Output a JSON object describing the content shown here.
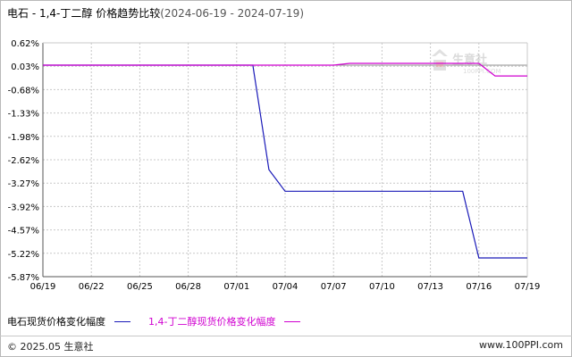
{
  "title": {
    "main": "电石 - 1,4-丁二醇 价格趋势比较",
    "range": "(2024-06-19 - 2024-07-19)"
  },
  "watermark": {
    "brand": "生意社",
    "site": "100PPI.COM"
  },
  "legend": [
    {
      "label": "电石现货价格变化幅度",
      "color": "#1a1ab8"
    },
    {
      "label": "1,4-丁二醇现货价格变化幅度",
      "color": "#d000d0"
    }
  ],
  "footer": {
    "copyright": "© 2025.05 生意社",
    "url": "www.100PPI.com"
  },
  "chart_data": {
    "type": "line",
    "title": "电石 - 1,4-丁二醇 价格趋势比较",
    "x_tick_labels": [
      "06/19",
      "06/22",
      "06/25",
      "06/28",
      "07/01",
      "07/04",
      "07/07",
      "07/10",
      "07/13",
      "07/16",
      "07/19"
    ],
    "y_tick_labels": [
      "0.62%",
      "0.03%",
      "-0.68%",
      "-1.33%",
      "-1.98%",
      "-2.62%",
      "-3.27%",
      "-3.92%",
      "-4.57%",
      "-5.22%",
      "-5.87%"
    ],
    "ylim": [
      -5.87,
      0.62
    ],
    "grid": true,
    "legend_position": "bottom",
    "series": [
      {
        "name": "电石现货价格变化幅度",
        "color": "#1a1ab8",
        "points": [
          [
            "06/19",
            0.0
          ],
          [
            "07/02",
            0.0
          ],
          [
            "07/03",
            -2.9
          ],
          [
            "07/04",
            -3.5
          ],
          [
            "07/15",
            -3.5
          ],
          [
            "07/16",
            -5.35
          ],
          [
            "07/19",
            -5.35
          ]
        ]
      },
      {
        "name": "1,4-丁二醇现货价格变化幅度",
        "color": "#d000d0",
        "points": [
          [
            "06/19",
            0.0
          ],
          [
            "07/07",
            0.0
          ],
          [
            "07/08",
            0.05
          ],
          [
            "07/16",
            0.05
          ],
          [
            "07/17",
            -0.3
          ],
          [
            "07/19",
            -0.3
          ]
        ]
      }
    ]
  }
}
